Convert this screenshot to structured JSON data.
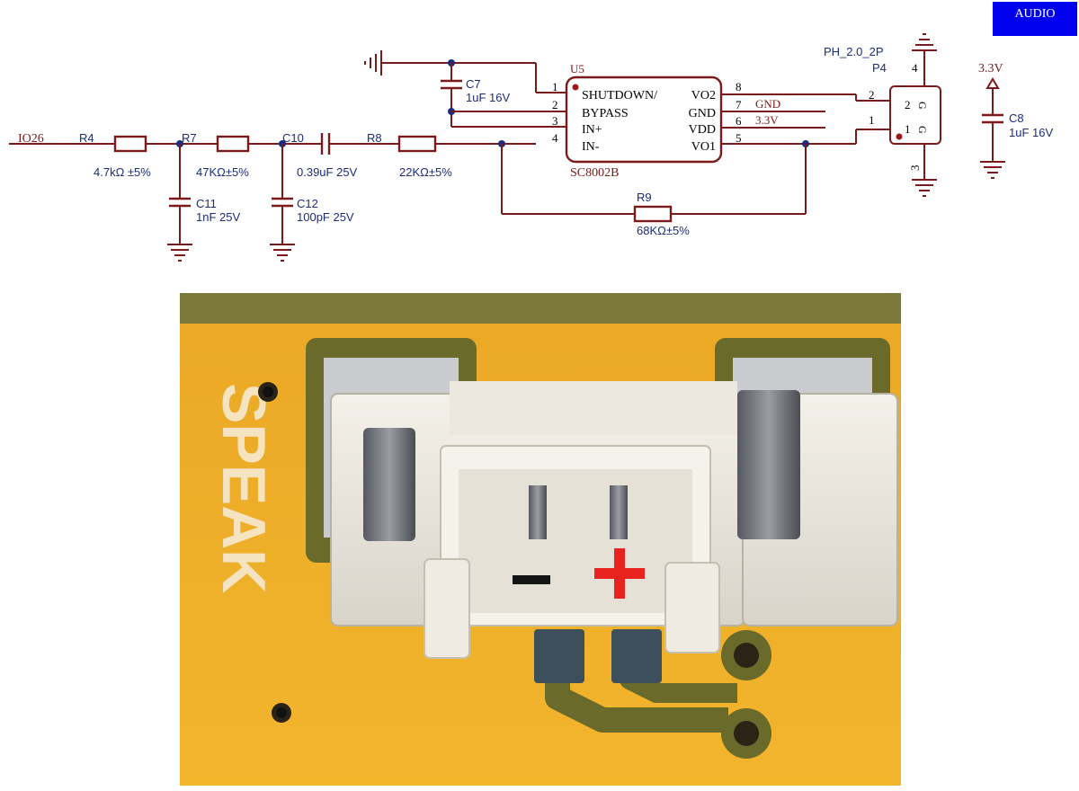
{
  "sheet": {
    "badge": "AUDIO",
    "net_in": "IO26",
    "supply": "3.3V"
  },
  "resistors": {
    "r4": {
      "ref": "R4",
      "value": "4.7kΩ ±5%"
    },
    "r7": {
      "ref": "R7",
      "value": "47KΩ±5%"
    },
    "r8": {
      "ref": "R8",
      "value": "22KΩ±5%"
    },
    "r9": {
      "ref": "R9",
      "value": "68KΩ±5%"
    }
  },
  "capacitors": {
    "c7": {
      "ref": "C7",
      "value": "1uF 16V"
    },
    "c8": {
      "ref": "C8",
      "value": "1uF 16V"
    },
    "c10": {
      "ref": "C10",
      "value": "0.39uF 25V"
    },
    "c11": {
      "ref": "C11",
      "value": "1nF 25V"
    },
    "c12": {
      "ref": "C12",
      "value": "100pF 25V"
    }
  },
  "u5": {
    "ref": "U5",
    "part": "SC8002B",
    "left_pins": [
      {
        "num": "1",
        "name": "SHUTDOWN/"
      },
      {
        "num": "2",
        "name": "BYPASS"
      },
      {
        "num": "3",
        "name": "IN+"
      },
      {
        "num": "4",
        "name": "IN-"
      }
    ],
    "right_pins": [
      {
        "num": "8",
        "name": "VO2"
      },
      {
        "num": "7",
        "name": "GND"
      },
      {
        "num": "6",
        "name": "VDD"
      },
      {
        "num": "5",
        "name": "VO1"
      }
    ],
    "net_gnd": "GND",
    "net_vdd": "3.3V"
  },
  "p4": {
    "ref": "P4",
    "part": "PH_2.0_2P",
    "pins": {
      "p1": "1",
      "p2": "2",
      "p3": "3",
      "p4": "4"
    },
    "inner_1": "1",
    "inner_2": "2",
    "inner_g1": "G",
    "inner_g2": "G"
  },
  "photo": {
    "silkscreen": "SPEAK",
    "minus_mark": "-",
    "plus_mark": "+"
  },
  "colors": {
    "wire": "#7a1a1a",
    "text_blue": "#1c2c7a",
    "badge_bg": "#0000ee",
    "pcb": "#f2b52c",
    "plus": "#e8231f"
  }
}
